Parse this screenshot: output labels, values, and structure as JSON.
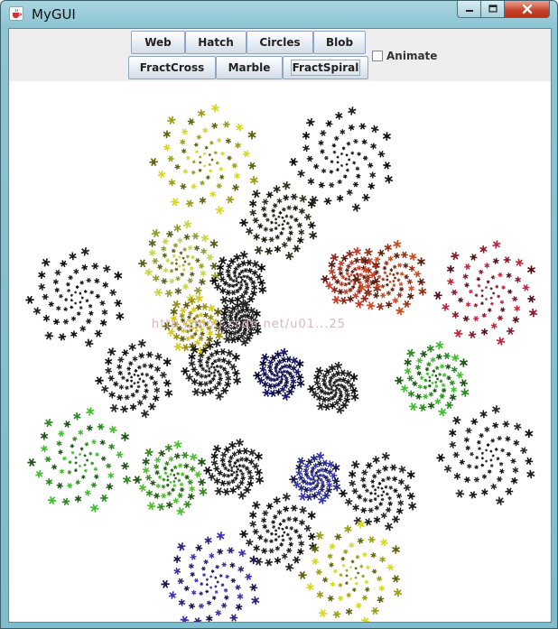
{
  "window": {
    "title": "MyGUI"
  },
  "toolbar": {
    "buttons_row1": [
      "Web",
      "Hatch",
      "Circles",
      "Blob"
    ],
    "buttons_row2": [
      "FractCross",
      "Marble",
      "FractSpiral"
    ],
    "animate_label": "Animate",
    "animate_checked": false
  },
  "canvas": {
    "watermark": "http://blog.csdn.net/u01...25",
    "spirals": [
      {
        "color": "#d8d820",
        "tone": "yellow"
      },
      {
        "color": "#222222",
        "tone": "dark"
      },
      {
        "color": "#333322",
        "tone": "dark"
      },
      {
        "color": "#c8d840",
        "tone": "yellow-green"
      },
      {
        "color": "#222222",
        "tone": "dark"
      },
      {
        "color": "#cc3a2a",
        "tone": "red"
      },
      {
        "color": "#d04a20",
        "tone": "orange-red"
      },
      {
        "color": "#c02a40",
        "tone": "red"
      },
      {
        "color": "#222222",
        "tone": "dark"
      },
      {
        "color": "#d8c820",
        "tone": "yellow"
      },
      {
        "color": "#2a2a2a",
        "tone": "dark"
      },
      {
        "color": "#2a2a2a",
        "tone": "dark"
      },
      {
        "color": "#2a2a2a",
        "tone": "dark"
      },
      {
        "color": "#1a1a70",
        "tone": "blue"
      },
      {
        "color": "#2a2a2a",
        "tone": "dark"
      },
      {
        "color": "#40c030",
        "tone": "green"
      },
      {
        "color": "#40c030",
        "tone": "green"
      },
      {
        "color": "#50c030",
        "tone": "green"
      },
      {
        "color": "#2a2a2a",
        "tone": "dark"
      },
      {
        "color": "#3a3ab0",
        "tone": "blue"
      },
      {
        "color": "#2a2a2a",
        "tone": "dark"
      },
      {
        "color": "#2a2a2a",
        "tone": "dark"
      },
      {
        "color": "#2a2a2a",
        "tone": "dark"
      },
      {
        "color": "#4030b0",
        "tone": "indigo"
      }
    ]
  }
}
